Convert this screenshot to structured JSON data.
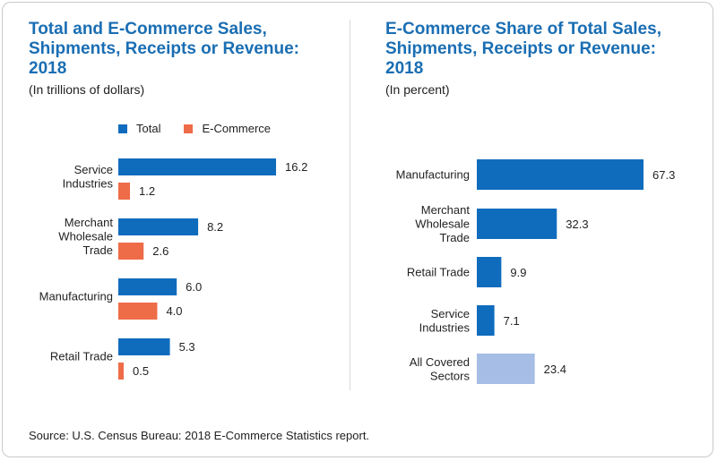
{
  "colors": {
    "total": "#0f6cbd",
    "ecommerce": "#ee6c48",
    "all_sectors": "#a6bde6",
    "title": "#1a6eb3"
  },
  "left": {
    "title": "Total and E-Commerce Sales, Shipments, Receipts or Revenue: 2018",
    "subtitle": "(In trillions of dollars)",
    "legend": [
      "Total",
      "E-Commerce"
    ]
  },
  "right": {
    "title": "E-Commerce Share of Total Sales, Shipments, Receipts or Revenue: 2018",
    "subtitle": "(In percent)"
  },
  "source": "Source: U.S. Census Bureau: 2018 E-Commerce Statistics report.",
  "chart_data": [
    {
      "type": "bar",
      "orientation": "horizontal",
      "title": "Total and E-Commerce Sales, Shipments, Receipts or Revenue: 2018",
      "subtitle": "(In trillions of dollars)",
      "categories": [
        "Service Industries",
        "Merchant Wholesale Trade",
        "Manufacturing",
        "Retail Trade"
      ],
      "series": [
        {
          "name": "Total",
          "values": [
            16.2,
            8.2,
            6.0,
            5.3
          ]
        },
        {
          "name": "E-Commerce",
          "values": [
            1.2,
            2.6,
            4.0,
            0.5
          ]
        }
      ],
      "value_labels": [
        [
          "16.2",
          "8.2",
          "6.0",
          "5.3"
        ],
        [
          "1.2",
          "2.6",
          "4.0",
          "0.5"
        ]
      ],
      "legend": "top",
      "grid": false
    },
    {
      "type": "bar",
      "orientation": "horizontal",
      "title": "E-Commerce Share of Total Sales, Shipments, Receipts or Revenue: 2018",
      "subtitle": "(In percent)",
      "categories": [
        "Manufacturing",
        "Merchant Wholesale Trade",
        "Retail Trade",
        "Service Industries",
        "All Covered Sectors"
      ],
      "values": [
        67.3,
        32.3,
        9.9,
        7.1,
        23.4
      ],
      "value_labels": [
        "67.3",
        "32.3",
        "9.9",
        "7.1",
        "23.4"
      ],
      "grid": false
    }
  ]
}
